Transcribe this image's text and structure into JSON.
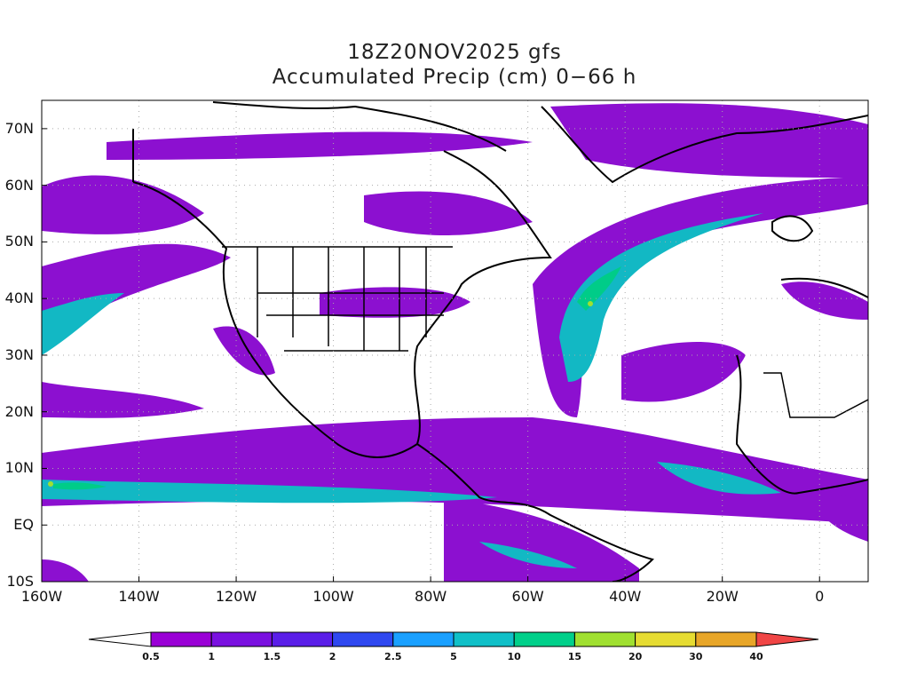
{
  "title": {
    "line1": "18Z20NOV2025 gfs",
    "line2": "Accumulated Precip (cm) 0−66 h"
  },
  "lat_labels": [
    "70N",
    "60N",
    "50N",
    "40N",
    "30N",
    "20N",
    "10N",
    "EQ",
    "10S"
  ],
  "lat_values": [
    70,
    60,
    50,
    40,
    30,
    20,
    10,
    0,
    -10
  ],
  "lon_labels": [
    "160W",
    "140W",
    "120W",
    "100W",
    "80W",
    "60W",
    "40W",
    "20W",
    "0"
  ],
  "lon_values": [
    -160,
    -140,
    -120,
    -100,
    -80,
    -60,
    -40,
    -20,
    0
  ],
  "map_extent": {
    "lon_min": -160,
    "lon_max": 10,
    "lat_min": -10,
    "lat_max": 75
  },
  "colorbar": {
    "labels": [
      "0.5",
      "1",
      "1.5",
      "2",
      "2.5",
      "5",
      "10",
      "15",
      "20",
      "30",
      "40"
    ],
    "colors": [
      "#9a00d6",
      "#7a10e0",
      "#5a1ee8",
      "#2f48f0",
      "#1aa0ff",
      "#10c0c8",
      "#00d08a",
      "#a0e030",
      "#e6dc32",
      "#e8a628",
      "#ee7626",
      "#f04545"
    ],
    "under_color": "#ffffff"
  }
}
